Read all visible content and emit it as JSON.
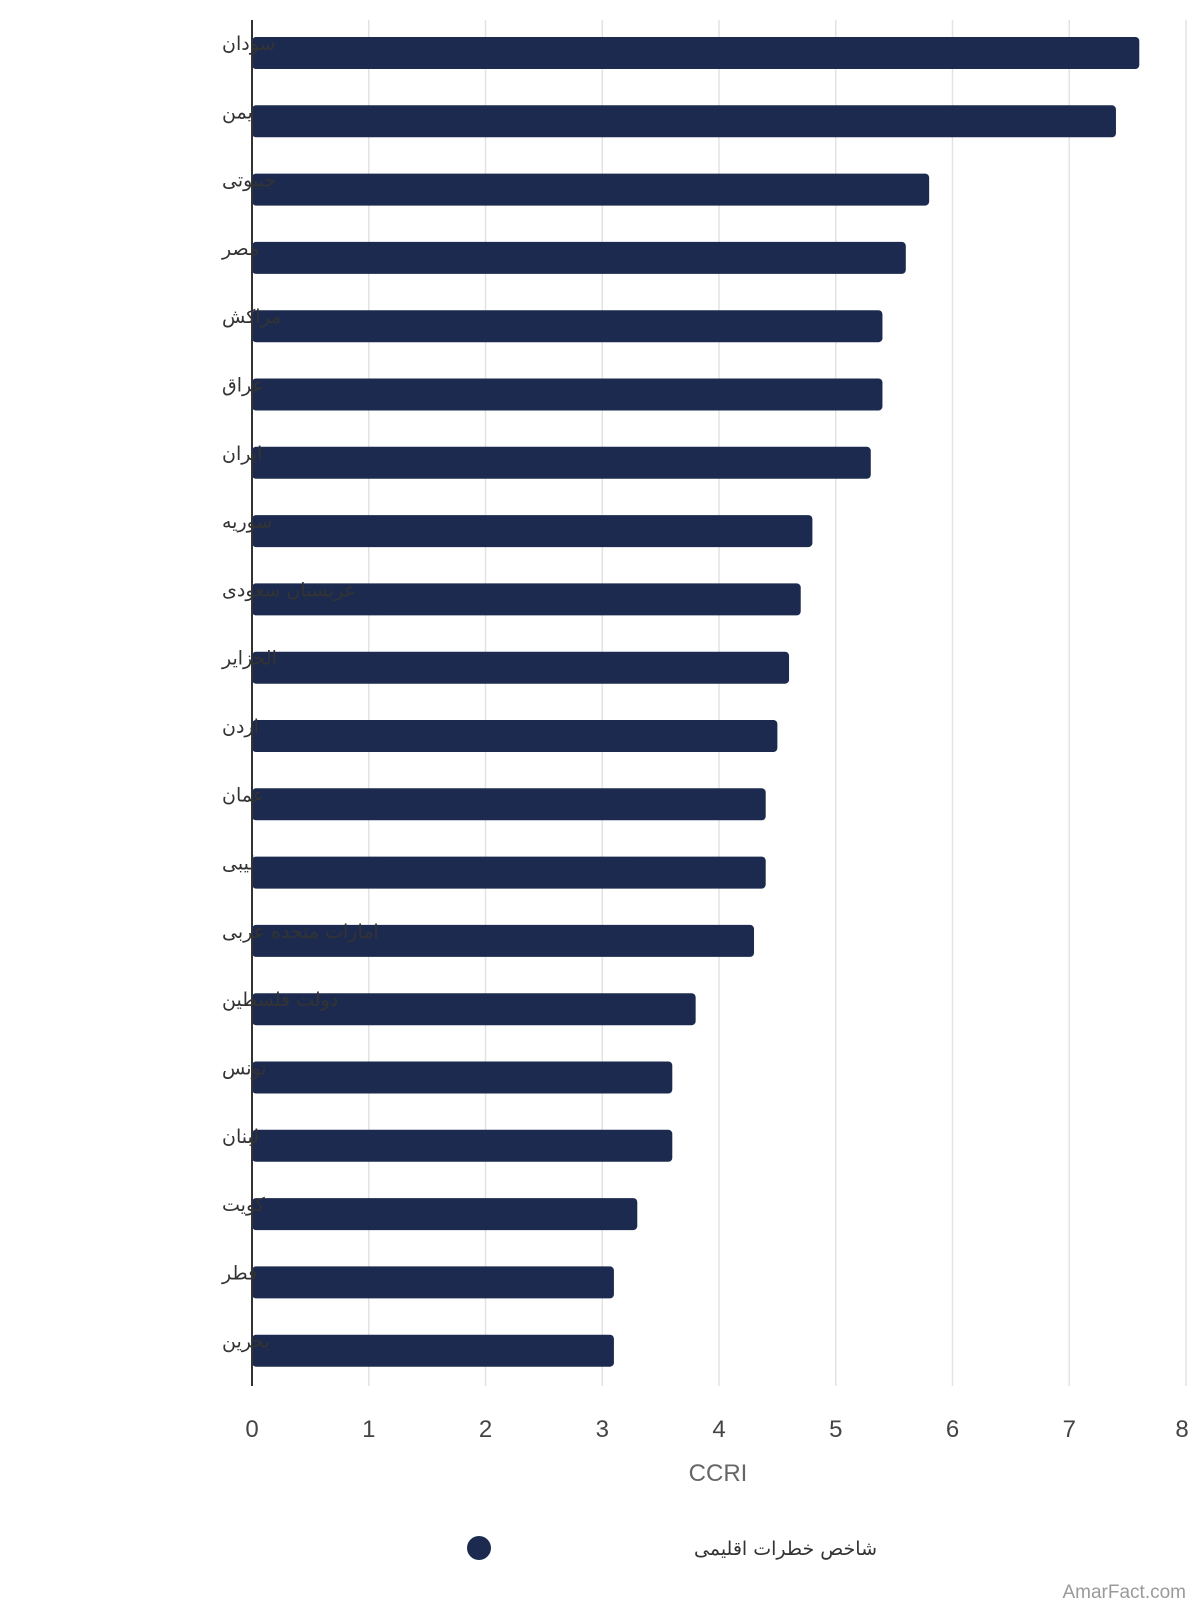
{
  "chart_data": {
    "type": "bar",
    "orientation": "horizontal",
    "categories": [
      "سودان",
      "یمن",
      "جیبوتی",
      "مصر",
      "مراکش",
      "عراق",
      "ایران",
      "سوریه",
      "عربستان سعودی",
      "الجزایر",
      "اردن",
      "عمان",
      "لیبی",
      "امارات متحده عربی",
      "دولت فلسطین",
      "تونس",
      "لبنان",
      "کویت",
      "قطر",
      "بحرین"
    ],
    "series": [
      {
        "name": "شاخص خطرات اقلیمی",
        "color": "#1b2a4e",
        "values": [
          7.6,
          7.4,
          5.8,
          5.6,
          5.4,
          5.4,
          5.3,
          4.8,
          4.7,
          4.6,
          4.5,
          4.4,
          4.4,
          4.3,
          3.8,
          3.6,
          3.6,
          3.3,
          3.1,
          3.1
        ]
      }
    ],
    "xlabel": "CCRI",
    "xlim": [
      0,
      8
    ],
    "xticks": [
      "0",
      "1",
      "2",
      "3",
      "4",
      "5",
      "6",
      "7",
      "8"
    ],
    "grid": "vertical",
    "legend_position": "bottom-center"
  },
  "watermark": "AmarFact.com"
}
